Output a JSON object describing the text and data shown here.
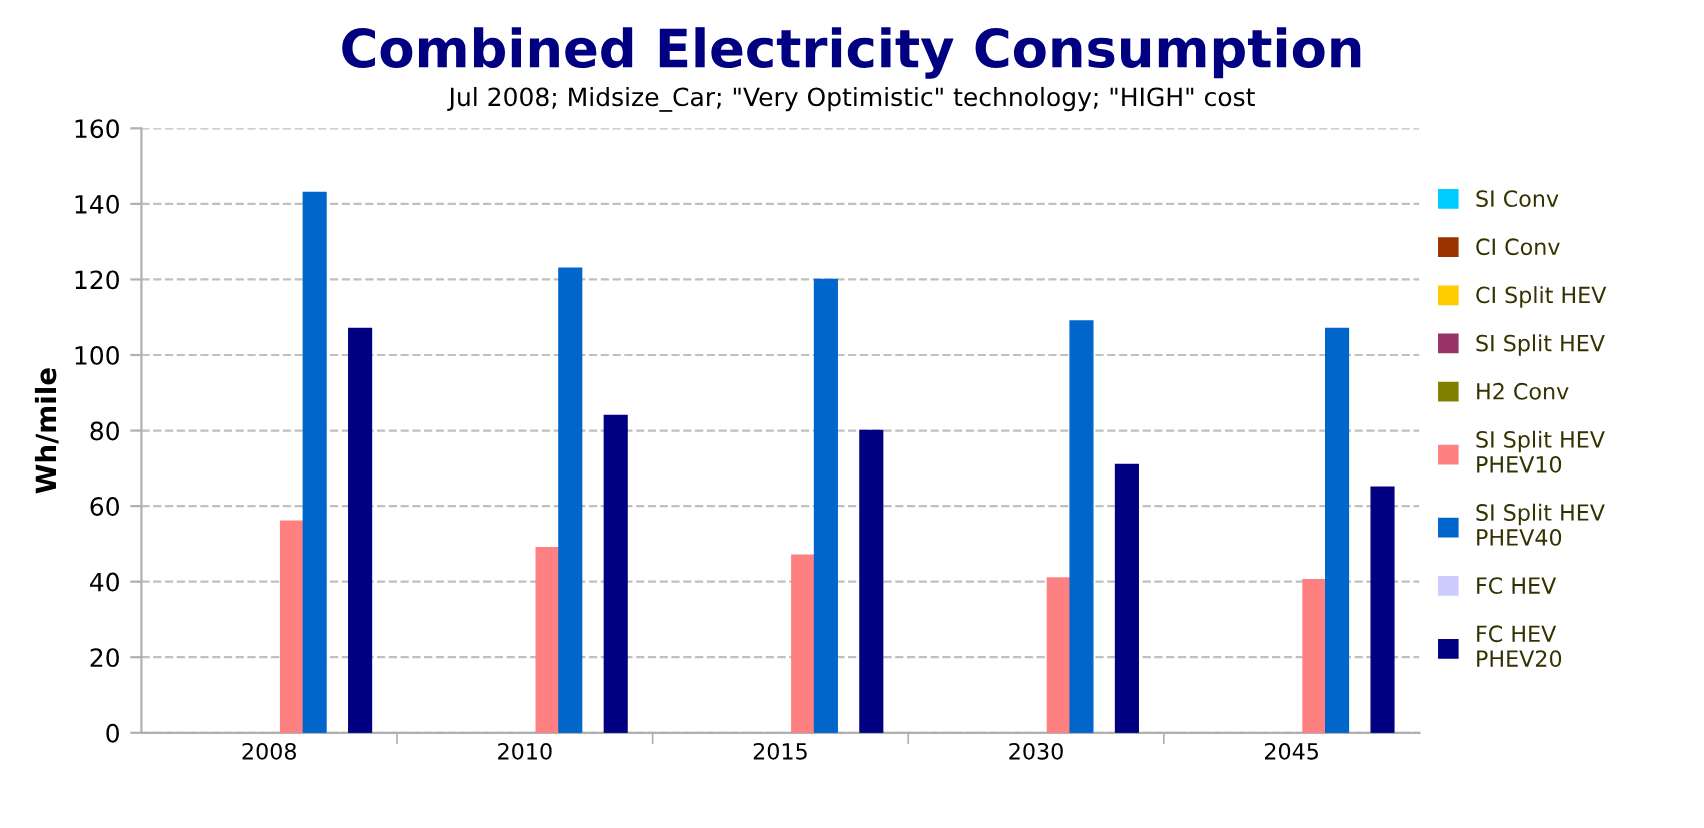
{
  "chart_data": {
    "type": "bar",
    "title": "Combined Electricity Consumption",
    "subtitle": "Jul 2008; Midsize_Car; \"Very Optimistic\" technology; \"HIGH\" cost",
    "ylabel": "Wh/mile",
    "categories": [
      "2008",
      "2010",
      "2015",
      "2030",
      "2045"
    ],
    "series": [
      {
        "name": "SI Conv",
        "color": "#00ccff",
        "values": [
          null,
          null,
          null,
          null,
          null
        ]
      },
      {
        "name": "CI Conv",
        "color": "#993300",
        "values": [
          null,
          null,
          null,
          null,
          null
        ]
      },
      {
        "name": "CI Split HEV",
        "color": "#ffcc00",
        "values": [
          null,
          null,
          null,
          null,
          null
        ]
      },
      {
        "name": "SI Split HEV",
        "color": "#993366",
        "values": [
          null,
          null,
          null,
          null,
          null
        ]
      },
      {
        "name": "H2 Conv",
        "color": "#808000",
        "values": [
          null,
          null,
          null,
          null,
          null
        ]
      },
      {
        "name": "SI Split HEV\nPHEV10",
        "color": "#ff8080",
        "values": [
          56,
          49,
          47,
          41,
          40.5
        ]
      },
      {
        "name": "SI Split HEV\nPHEV40",
        "color": "#0066cc",
        "values": [
          143,
          123,
          120,
          109,
          107
        ]
      },
      {
        "name": "FC HEV",
        "color": "#ccccff",
        "values": [
          null,
          null,
          null,
          null,
          null
        ]
      },
      {
        "name": "FC HEV\nPHEV20",
        "color": "#000080",
        "values": [
          107,
          84,
          80,
          71,
          65
        ]
      }
    ],
    "ylim": [
      0,
      160
    ],
    "yticks": [
      0,
      20,
      40,
      60,
      80,
      100,
      120,
      140,
      160
    ],
    "grid": "y",
    "legend": "right"
  }
}
